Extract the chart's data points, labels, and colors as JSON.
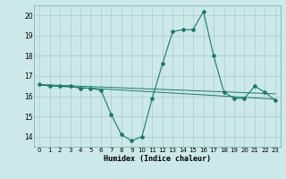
{
  "xlabel": "Humidex (Indice chaleur)",
  "x_values": [
    0,
    1,
    2,
    3,
    4,
    5,
    6,
    7,
    8,
    9,
    10,
    11,
    12,
    13,
    14,
    15,
    16,
    17,
    18,
    19,
    20,
    21,
    22,
    23
  ],
  "y_main": [
    16.6,
    16.5,
    16.5,
    16.5,
    16.4,
    16.4,
    16.3,
    15.1,
    14.1,
    13.8,
    14.0,
    15.9,
    17.6,
    19.2,
    19.3,
    19.3,
    20.2,
    18.0,
    16.2,
    15.9,
    15.9,
    16.5,
    16.2,
    15.8
  ],
  "y_trend1": [
    16.55,
    16.52,
    16.49,
    16.46,
    16.43,
    16.4,
    16.37,
    16.34,
    16.31,
    16.28,
    16.25,
    16.22,
    16.19,
    16.16,
    16.13,
    16.1,
    16.07,
    16.04,
    16.01,
    15.98,
    15.95,
    15.92,
    15.89,
    15.86
  ],
  "y_trend2": [
    16.58,
    16.56,
    16.54,
    16.52,
    16.5,
    16.48,
    16.46,
    16.44,
    16.42,
    16.4,
    16.38,
    16.36,
    16.34,
    16.32,
    16.3,
    16.28,
    16.26,
    16.24,
    16.22,
    16.2,
    16.18,
    16.16,
    16.14,
    16.12
  ],
  "line_color": "#1a7a6e",
  "bg_color": "#cce8e8",
  "grid_color": "#aacccc",
  "ylim": [
    13.5,
    20.5
  ],
  "yticks": [
    14,
    15,
    16,
    17,
    18,
    19,
    20
  ],
  "xlim": [
    -0.5,
    23.5
  ],
  "xticks": [
    0,
    1,
    2,
    3,
    4,
    5,
    6,
    7,
    8,
    9,
    10,
    11,
    12,
    13,
    14,
    15,
    16,
    17,
    18,
    19,
    20,
    21,
    22,
    23
  ]
}
